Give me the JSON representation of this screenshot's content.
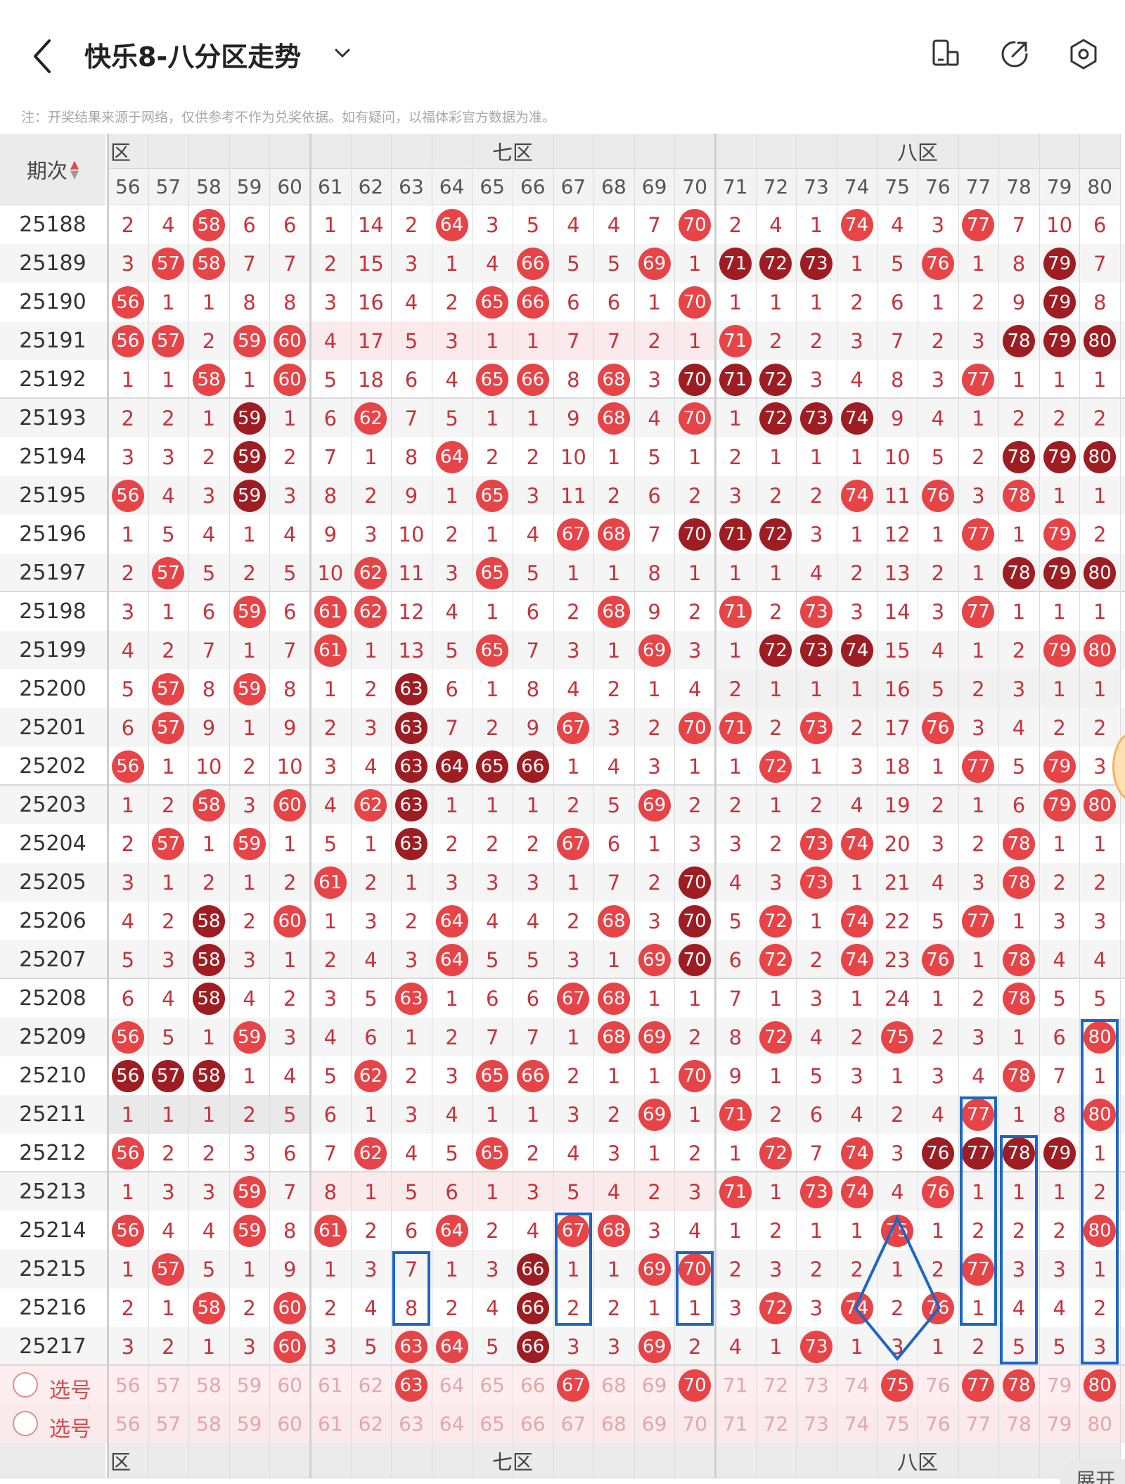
{
  "header": {
    "title": "快乐8-八分区走势",
    "notice": "注：开奖结果来源于网络，仅供参考不作为兑奖依据。如有疑问，以福体彩官方数据为准。"
  },
  "table": {
    "issue_header": "期次",
    "zones": [
      "六区",
      "七区",
      "八区"
    ],
    "zone_labels_visible": [
      "区",
      "七区",
      "八区"
    ],
    "numbers": [
      "56",
      "57",
      "58",
      "59",
      "60",
      "61",
      "62",
      "63",
      "64",
      "65",
      "66",
      "67",
      "68",
      "69",
      "70",
      "71",
      "72",
      "73",
      "74",
      "75",
      "76",
      "77",
      "78",
      "79",
      "80"
    ],
    "rows": [
      {
        "issue": "25188",
        "cells": [
          "2",
          "4",
          "B58",
          "6",
          "6",
          "1",
          "14",
          "2",
          "B64",
          "3",
          "5",
          "4",
          "4",
          "7",
          "B70",
          "2",
          "4",
          "1",
          "B74",
          "4",
          "3",
          "B77",
          "7",
          "10",
          "6"
        ]
      },
      {
        "issue": "25189",
        "cells": [
          "3",
          "B57",
          "B58",
          "7",
          "7",
          "2",
          "15",
          "3",
          "1",
          "4",
          "B66",
          "5",
          "5",
          "B69",
          "1",
          "D71",
          "D72",
          "D73",
          "1",
          "5",
          "B76",
          "1",
          "8",
          "D79",
          "7"
        ]
      },
      {
        "issue": "25190",
        "cells": [
          "B56",
          "1",
          "1",
          "8",
          "8",
          "3",
          "16",
          "4",
          "2",
          "B65",
          "B66",
          "6",
          "6",
          "1",
          "B70",
          "1",
          "1",
          "1",
          "2",
          "6",
          "1",
          "2",
          "9",
          "D79",
          "8"
        ]
      },
      {
        "issue": "25191",
        "cells": [
          "B56",
          "B57",
          "2",
          "B59",
          "B60",
          "4",
          "17",
          "5",
          "3",
          "1",
          "1",
          "7",
          "7",
          "2",
          "1",
          "B71",
          "2",
          "2",
          "3",
          "7",
          "2",
          "3",
          "D78",
          "D79",
          "D80"
        ]
      },
      {
        "issue": "25192",
        "cells": [
          "1",
          "1",
          "B58",
          "1",
          "B60",
          "5",
          "18",
          "6",
          "4",
          "B65",
          "B66",
          "8",
          "B68",
          "3",
          "D70",
          "D71",
          "D72",
          "3",
          "4",
          "8",
          "3",
          "B77",
          "1",
          "1",
          "1"
        ]
      },
      {
        "issue": "25193",
        "cells": [
          "2",
          "2",
          "1",
          "D59",
          "1",
          "6",
          "B62",
          "7",
          "5",
          "1",
          "1",
          "9",
          "B68",
          "4",
          "B70",
          "1",
          "D72",
          "D73",
          "D74",
          "9",
          "4",
          "1",
          "2",
          "2",
          "2"
        ]
      },
      {
        "issue": "25194",
        "cells": [
          "3",
          "3",
          "2",
          "D59",
          "2",
          "7",
          "1",
          "8",
          "B64",
          "2",
          "2",
          "10",
          "1",
          "5",
          "1",
          "2",
          "1",
          "1",
          "1",
          "10",
          "5",
          "2",
          "D78",
          "D79",
          "D80"
        ]
      },
      {
        "issue": "25195",
        "cells": [
          "B56",
          "4",
          "3",
          "D59",
          "3",
          "8",
          "2",
          "9",
          "1",
          "B65",
          "3",
          "11",
          "2",
          "6",
          "2",
          "3",
          "2",
          "2",
          "B74",
          "11",
          "B76",
          "3",
          "B78",
          "1",
          "1"
        ]
      },
      {
        "issue": "25196",
        "cells": [
          "1",
          "5",
          "4",
          "1",
          "4",
          "9",
          "3",
          "10",
          "2",
          "1",
          "4",
          "B67",
          "B68",
          "7",
          "D70",
          "D71",
          "D72",
          "3",
          "1",
          "12",
          "1",
          "B77",
          "1",
          "B79",
          "2"
        ]
      },
      {
        "issue": "25197",
        "cells": [
          "2",
          "B57",
          "5",
          "2",
          "5",
          "10",
          "B62",
          "11",
          "3",
          "B65",
          "5",
          "1",
          "1",
          "8",
          "1",
          "1",
          "1",
          "4",
          "2",
          "13",
          "2",
          "1",
          "D78",
          "D79",
          "D80"
        ]
      },
      {
        "issue": "25198",
        "cells": [
          "3",
          "1",
          "6",
          "B59",
          "6",
          "B61",
          "B62",
          "12",
          "4",
          "1",
          "6",
          "2",
          "B68",
          "9",
          "2",
          "B71",
          "2",
          "B73",
          "3",
          "14",
          "3",
          "B77",
          "1",
          "1",
          "1"
        ]
      },
      {
        "issue": "25199",
        "cells": [
          "4",
          "2",
          "7",
          "1",
          "7",
          "B61",
          "1",
          "13",
          "5",
          "B65",
          "7",
          "3",
          "1",
          "B69",
          "3",
          "1",
          "D72",
          "D73",
          "D74",
          "15",
          "4",
          "1",
          "2",
          "B79",
          "B80"
        ]
      },
      {
        "issue": "25200",
        "cells": [
          "5",
          "B57",
          "8",
          "B59",
          "8",
          "1",
          "2",
          "D63",
          "6",
          "1",
          "8",
          "4",
          "2",
          "1",
          "4",
          "2",
          "1",
          "1",
          "1",
          "16",
          "5",
          "2",
          "3",
          "1",
          "1"
        ]
      },
      {
        "issue": "25201",
        "cells": [
          "6",
          "B57",
          "9",
          "1",
          "9",
          "2",
          "3",
          "D63",
          "7",
          "2",
          "9",
          "B67",
          "3",
          "2",
          "B70",
          "B71",
          "2",
          "B73",
          "2",
          "17",
          "B76",
          "3",
          "4",
          "2",
          "2"
        ]
      },
      {
        "issue": "25202",
        "cells": [
          "B56",
          "1",
          "10",
          "2",
          "10",
          "3",
          "4",
          "D63",
          "D64",
          "D65",
          "D66",
          "1",
          "4",
          "3",
          "1",
          "1",
          "B72",
          "1",
          "3",
          "18",
          "1",
          "B77",
          "5",
          "B79",
          "3"
        ]
      },
      {
        "issue": "25203",
        "cells": [
          "1",
          "2",
          "B58",
          "3",
          "B60",
          "4",
          "B62",
          "D63",
          "1",
          "1",
          "1",
          "2",
          "5",
          "B69",
          "2",
          "2",
          "1",
          "2",
          "4",
          "19",
          "2",
          "1",
          "6",
          "B79",
          "B80"
        ]
      },
      {
        "issue": "25204",
        "cells": [
          "2",
          "B57",
          "1",
          "B59",
          "1",
          "5",
          "1",
          "D63",
          "2",
          "2",
          "2",
          "B67",
          "6",
          "1",
          "3",
          "3",
          "2",
          "B73",
          "B74",
          "20",
          "3",
          "2",
          "B78",
          "1",
          "1"
        ]
      },
      {
        "issue": "25205",
        "cells": [
          "3",
          "1",
          "2",
          "1",
          "2",
          "B61",
          "2",
          "1",
          "3",
          "3",
          "3",
          "1",
          "7",
          "2",
          "D70",
          "4",
          "3",
          "B73",
          "1",
          "21",
          "4",
          "3",
          "B78",
          "2",
          "2"
        ]
      },
      {
        "issue": "25206",
        "cells": [
          "4",
          "2",
          "D58",
          "2",
          "B60",
          "1",
          "3",
          "2",
          "B64",
          "4",
          "4",
          "2",
          "B68",
          "3",
          "D70",
          "5",
          "B72",
          "1",
          "B74",
          "22",
          "5",
          "B77",
          "1",
          "3",
          "3"
        ]
      },
      {
        "issue": "25207",
        "cells": [
          "5",
          "3",
          "D58",
          "3",
          "1",
          "2",
          "4",
          "3",
          "B64",
          "5",
          "5",
          "3",
          "1",
          "B69",
          "D70",
          "6",
          "B72",
          "2",
          "B74",
          "23",
          "B76",
          "1",
          "B78",
          "4",
          "4"
        ]
      },
      {
        "issue": "25208",
        "cells": [
          "6",
          "4",
          "D58",
          "4",
          "2",
          "3",
          "5",
          "B63",
          "1",
          "6",
          "6",
          "B67",
          "B68",
          "1",
          "1",
          "7",
          "1",
          "3",
          "1",
          "24",
          "1",
          "2",
          "B78",
          "5",
          "5"
        ]
      },
      {
        "issue": "25209",
        "cells": [
          "B56",
          "5",
          "1",
          "B59",
          "3",
          "4",
          "6",
          "1",
          "2",
          "7",
          "7",
          "1",
          "B68",
          "B69",
          "2",
          "8",
          "B72",
          "4",
          "2",
          "B75",
          "2",
          "3",
          "1",
          "6",
          "B80"
        ]
      },
      {
        "issue": "25210",
        "cells": [
          "D56",
          "D57",
          "D58",
          "1",
          "4",
          "5",
          "B62",
          "2",
          "3",
          "B65",
          "B66",
          "2",
          "1",
          "1",
          "B70",
          "9",
          "1",
          "5",
          "3",
          "1",
          "3",
          "4",
          "B78",
          "7",
          "1"
        ]
      },
      {
        "issue": "25211",
        "cells": [
          "1",
          "1",
          "1",
          "2",
          "5",
          "6",
          "1",
          "3",
          "4",
          "1",
          "1",
          "3",
          "2",
          "B69",
          "1",
          "B71",
          "2",
          "6",
          "4",
          "2",
          "4",
          "B77",
          "1",
          "8",
          "B80"
        ]
      },
      {
        "issue": "25212",
        "cells": [
          "B56",
          "2",
          "2",
          "3",
          "6",
          "7",
          "B62",
          "4",
          "5",
          "B65",
          "2",
          "4",
          "3",
          "1",
          "2",
          "1",
          "B72",
          "7",
          "B74",
          "3",
          "D76",
          "D77",
          "D78",
          "D79",
          "1"
        ]
      },
      {
        "issue": "25213",
        "cells": [
          "1",
          "3",
          "3",
          "B59",
          "7",
          "8",
          "1",
          "5",
          "6",
          "1",
          "3",
          "5",
          "4",
          "2",
          "3",
          "B71",
          "1",
          "B73",
          "B74",
          "4",
          "B76",
          "1",
          "1",
          "1",
          "2"
        ]
      },
      {
        "issue": "25214",
        "cells": [
          "B56",
          "4",
          "4",
          "B59",
          "8",
          "B61",
          "2",
          "6",
          "B64",
          "2",
          "4",
          "B67",
          "B68",
          "3",
          "4",
          "1",
          "2",
          "1",
          "1",
          "B75",
          "1",
          "2",
          "2",
          "2",
          "B80"
        ]
      },
      {
        "issue": "25215",
        "cells": [
          "1",
          "B57",
          "5",
          "1",
          "9",
          "1",
          "3",
          "7",
          "1",
          "3",
          "D66",
          "1",
          "1",
          "B69",
          "B70",
          "2",
          "3",
          "2",
          "2",
          "1",
          "2",
          "B77",
          "3",
          "3",
          "1"
        ]
      },
      {
        "issue": "25216",
        "cells": [
          "2",
          "1",
          "B58",
          "2",
          "B60",
          "2",
          "4",
          "8",
          "2",
          "4",
          "D66",
          "2",
          "2",
          "1",
          "1",
          "3",
          "B72",
          "3",
          "B74",
          "2",
          "B76",
          "1",
          "4",
          "4",
          "2"
        ]
      },
      {
        "issue": "25217",
        "cells": [
          "3",
          "2",
          "1",
          "3",
          "B60",
          "3",
          "5",
          "B63",
          "B64",
          "5",
          "D66",
          "3",
          "3",
          "B69",
          "2",
          "4",
          "1",
          "B73",
          "1",
          "3",
          "1",
          "2",
          "5",
          "5",
          "3"
        ]
      }
    ],
    "select_label": "选号",
    "select_row_1_picked": [
      "63",
      "67",
      "70",
      "75",
      "77",
      "78",
      "80"
    ],
    "expand_label": "展开"
  },
  "colors": {
    "ball_light": "#e74448",
    "ball_dark": "#9e1d22",
    "value_text": "#c8323a",
    "box_blue": "#1c66c4"
  }
}
